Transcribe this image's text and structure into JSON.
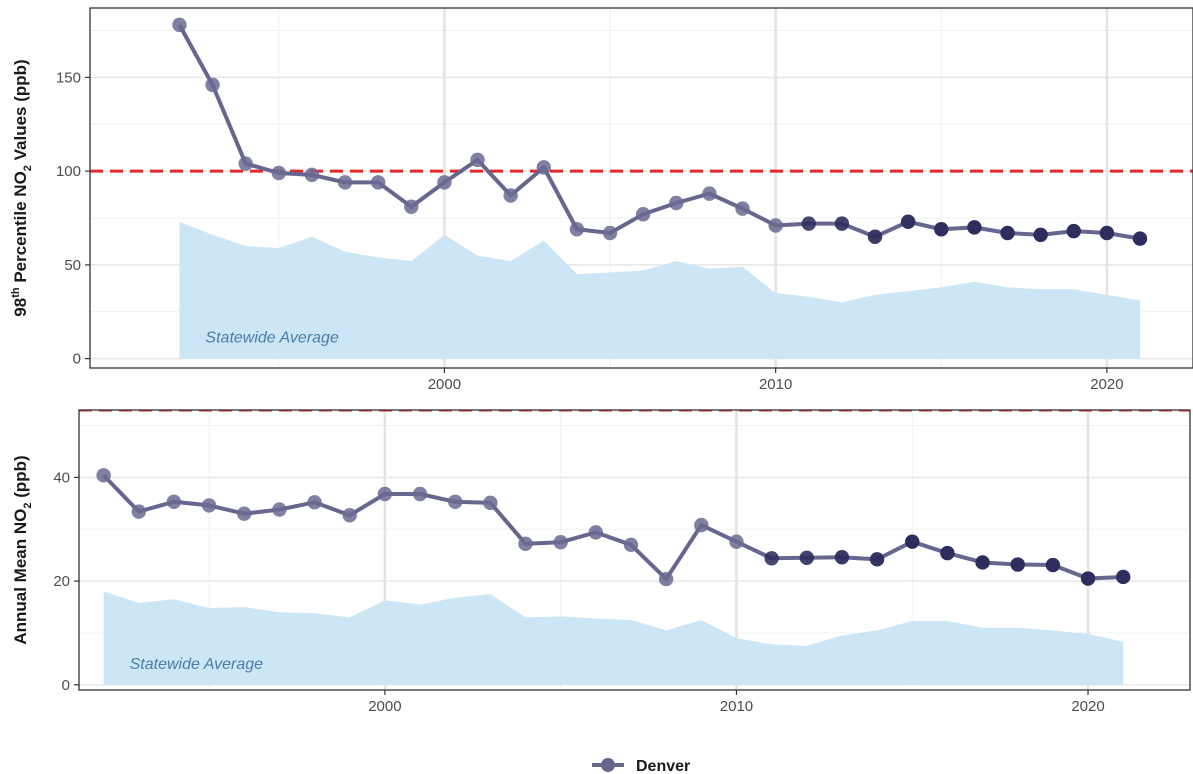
{
  "chart_data": [
    {
      "type": "line",
      "ylabel_parts": [
        "98",
        "th",
        " Percentile NO",
        "2",
        " Values (ppb)"
      ],
      "ylim": [
        -5,
        187
      ],
      "yticks": [
        0,
        50,
        100,
        150
      ],
      "xticks": [
        2000,
        2010,
        2020
      ],
      "reference_line": {
        "y": 100,
        "color": "#e0292b",
        "style": "dashed"
      },
      "area": {
        "label": "Statewide Average",
        "color": "#cde6f5",
        "x": [
          1992,
          1993,
          1994,
          1995,
          1996,
          1997,
          1998,
          1999,
          2000,
          2001,
          2002,
          2003,
          2004,
          2005,
          2006,
          2007,
          2008,
          2009,
          2010,
          2011,
          2012,
          2013,
          2014,
          2015,
          2016,
          2017,
          2018,
          2019,
          2020,
          2021
        ],
        "values": [
          73,
          66,
          60,
          59,
          65,
          57,
          54,
          52,
          66,
          55,
          52,
          63,
          45,
          46,
          47,
          52,
          48,
          49,
          35,
          33,
          30,
          34,
          36,
          38,
          41,
          38,
          37,
          37,
          34,
          31
        ]
      },
      "series": [
        {
          "name": "Denver",
          "x": [
            1992,
            1993,
            1994,
            1995,
            1996,
            1997,
            1998,
            1999,
            2000,
            2001,
            2002,
            2003,
            2004,
            2005,
            2006,
            2007,
            2008,
            2009,
            2010,
            2011,
            2012,
            2013,
            2014,
            2015,
            2016,
            2017,
            2018,
            2019,
            2020,
            2021
          ],
          "values": [
            178,
            146,
            104,
            99,
            98,
            94,
            94,
            81,
            94,
            106,
            87,
            102,
            69,
            67,
            77,
            83,
            88,
            80,
            71,
            72,
            72,
            65,
            73,
            69,
            70,
            67,
            66,
            68,
            67,
            64
          ]
        }
      ]
    },
    {
      "type": "line",
      "ylabel_parts": [
        "Annual Mean NO",
        "2",
        " (ppb)"
      ],
      "ylim": [
        -1,
        53
      ],
      "yticks": [
        0,
        20,
        40
      ],
      "xticks": [
        2000,
        2010,
        2020
      ],
      "reference_line": {
        "y": 53,
        "color": "#e0292b",
        "style": "dashed"
      },
      "area": {
        "label": "Statewide Average",
        "color": "#cde6f5",
        "x": [
          1992,
          1993,
          1994,
          1995,
          1996,
          1997,
          1998,
          1999,
          2000,
          2001,
          2002,
          2003,
          2004,
          2005,
          2006,
          2007,
          2008,
          2009,
          2010,
          2011,
          2012,
          2013,
          2014,
          2015,
          2016,
          2017,
          2018,
          2019,
          2020,
          2021
        ],
        "values": [
          18,
          15.8,
          16.5,
          14.8,
          15,
          14,
          13.8,
          13,
          16.3,
          15.5,
          16.8,
          17.5,
          13,
          13.2,
          12.8,
          12.5,
          10.5,
          12.5,
          9,
          7.8,
          7.5,
          9.5,
          10.5,
          12.3,
          12.3,
          11,
          11,
          10.5,
          9.8,
          8.3
        ]
      },
      "series": [
        {
          "name": "Denver",
          "x": [
            1992,
            1993,
            1994,
            1995,
            1996,
            1997,
            1998,
            1999,
            2000,
            2001,
            2002,
            2003,
            2004,
            2005,
            2006,
            2007,
            2008,
            2009,
            2010,
            2011,
            2012,
            2013,
            2014,
            2015,
            2016,
            2017,
            2018,
            2019,
            2020,
            2021
          ],
          "values": [
            40.4,
            33.4,
            35.3,
            34.6,
            33,
            33.8,
            35.2,
            32.7,
            36.8,
            36.8,
            35.3,
            35.1,
            27.2,
            27.5,
            29.4,
            27,
            20.4,
            30.8,
            27.6,
            24.4,
            24.5,
            24.6,
            24.2,
            27.6,
            25.4,
            23.6,
            23.2,
            23.1,
            20.5,
            20.8
          ]
        }
      ]
    }
  ],
  "legend": {
    "label": "Denver",
    "color": "#66668f"
  },
  "colors": {
    "line": "#66668f",
    "point_light": "#6a6a92",
    "point_dark": "#2e2e5e",
    "area": "#cde6f5",
    "reference": "#e0292b"
  }
}
